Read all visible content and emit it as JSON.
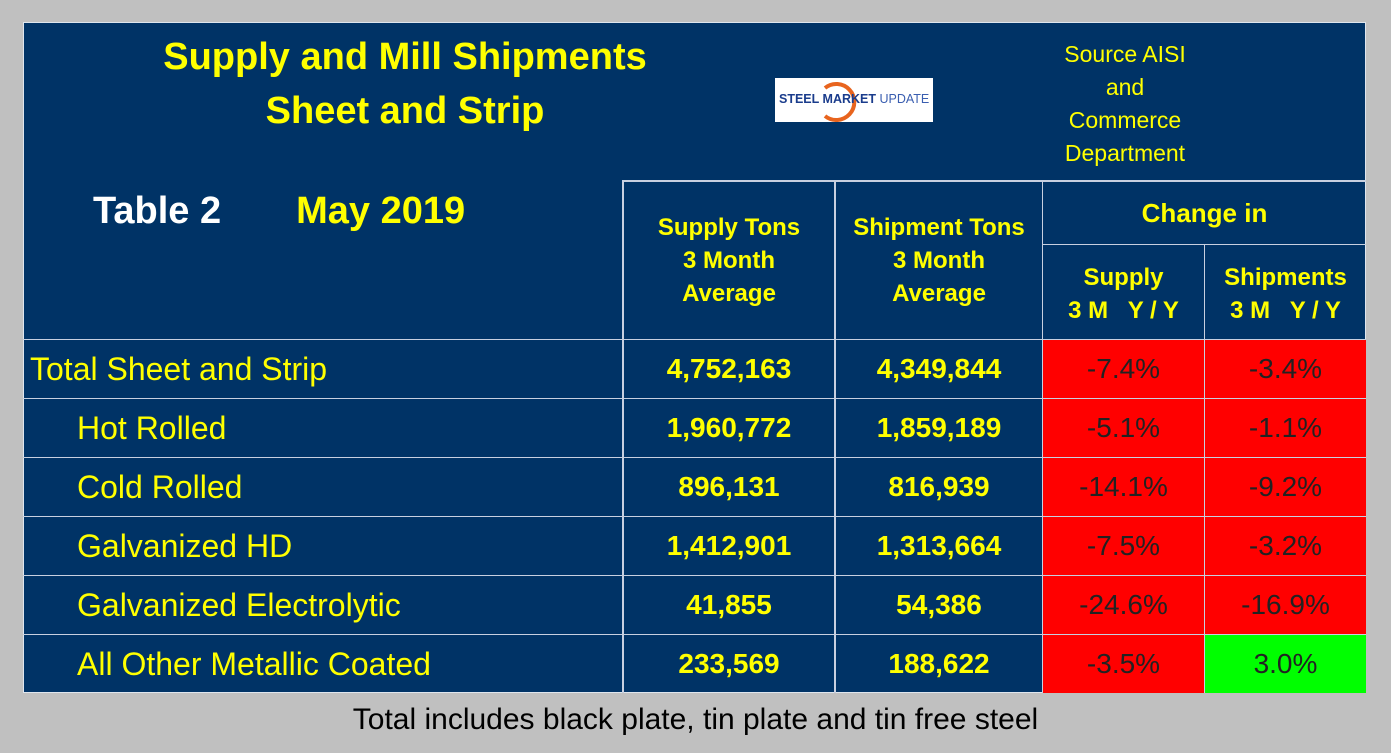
{
  "title_line1": "Supply and Mill Shipments",
  "title_line2": "Sheet and Strip",
  "table_label": "Table 2",
  "period": "May 2019",
  "logo_text": {
    "steel": "STEEL",
    "market": "MARKET",
    "update": "UPDATE"
  },
  "source": [
    "Source AISI",
    "and",
    "Commerce",
    "Department"
  ],
  "headers": {
    "supply": [
      "Supply Tons",
      "3 Month",
      "Average"
    ],
    "shipment": [
      "Shipment Tons",
      "3 Month",
      "Average"
    ],
    "change_in": "Change in",
    "supply_change": [
      "Supply",
      "3 M   Y / Y"
    ],
    "shipments_change": [
      "Shipments",
      "3 M   Y / Y"
    ]
  },
  "colors": {
    "negative": "#ff0000",
    "positive": "#00ff00",
    "background": "#003366"
  },
  "rows": [
    {
      "label": "Total Sheet and Strip",
      "supply": "4,752,163",
      "shipment": "4,349,844",
      "supply_change": "-7.4%",
      "ship_change": "-3.4%",
      "indent": false
    },
    {
      "label": "Hot Rolled",
      "supply": "1,960,772",
      "shipment": "1,859,189",
      "supply_change": "-5.1%",
      "ship_change": "-1.1%",
      "indent": true
    },
    {
      "label": "Cold Rolled",
      "supply": "896,131",
      "shipment": "816,939",
      "supply_change": "-14.1%",
      "ship_change": "-9.2%",
      "indent": true
    },
    {
      "label": "Galvanized HD",
      "supply": "1,412,901",
      "shipment": "1,313,664",
      "supply_change": "-7.5%",
      "ship_change": "-3.2%",
      "indent": true
    },
    {
      "label": "Galvanized Electrolytic",
      "supply": "41,855",
      "shipment": "54,386",
      "supply_change": "-24.6%",
      "ship_change": "-16.9%",
      "indent": true
    },
    {
      "label": "All Other Metallic Coated",
      "supply": "233,569",
      "shipment": "188,622",
      "supply_change": "-3.5%",
      "ship_change": "3.0%",
      "indent": true
    }
  ],
  "footnote": "Total includes black plate, tin plate and tin free steel"
}
